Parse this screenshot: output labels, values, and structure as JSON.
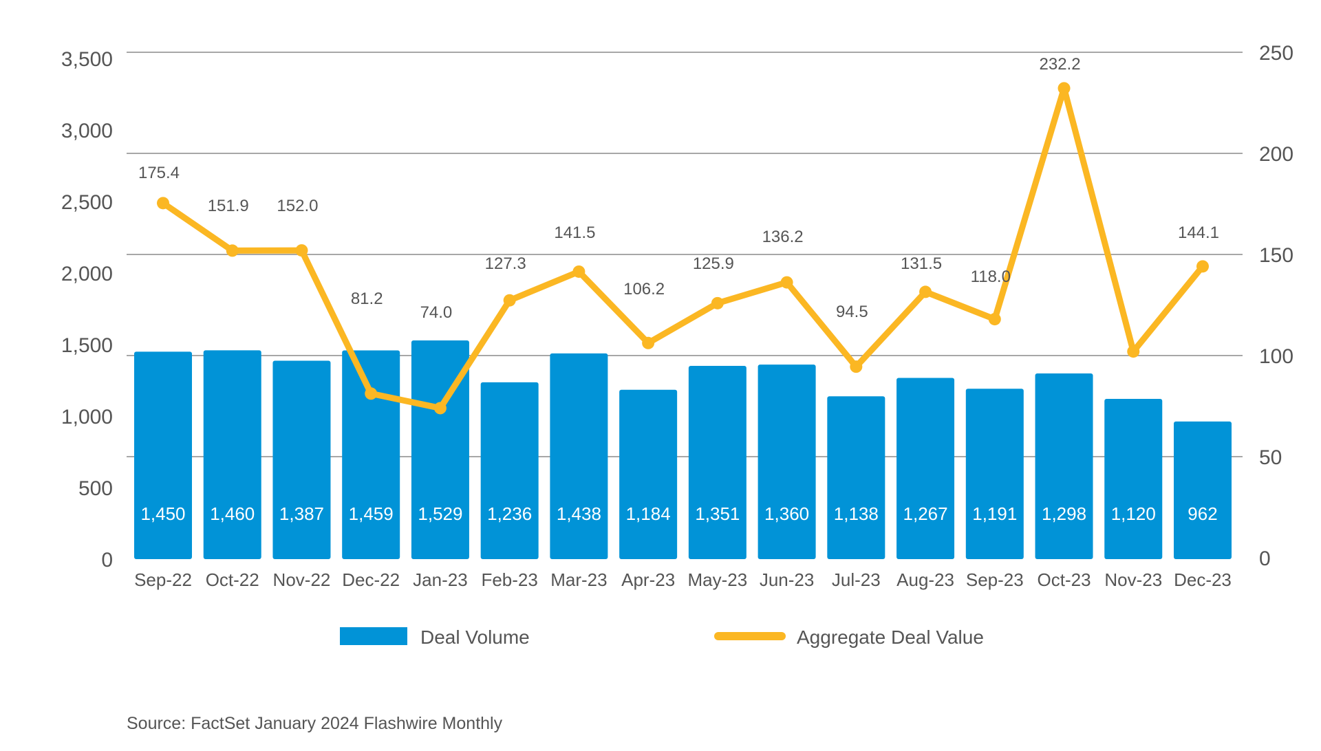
{
  "chart_data": {
    "type": "bar",
    "categories": [
      "Sep-22",
      "Oct-22",
      "Nov-22",
      "Dec-22",
      "Jan-23",
      "Feb-23",
      "Mar-23",
      "Apr-23",
      "May-23",
      "Jun-23",
      "Jul-23",
      "Aug-23",
      "Sep-23",
      "Oct-23",
      "Nov-23",
      "Dec-23"
    ],
    "series": [
      {
        "name": "Deal Volume",
        "type": "bar",
        "axis": "left",
        "values": [
          1450,
          1460,
          1387,
          1459,
          1529,
          1236,
          1438,
          1184,
          1351,
          1360,
          1138,
          1267,
          1191,
          1298,
          1120,
          962
        ],
        "labels": [
          "1,450",
          "1,460",
          "1,387",
          "1,459",
          "1,529",
          "1,236",
          "1,438",
          "1,184",
          "1,351",
          "1,360",
          "1,138",
          "1,267",
          "1,191",
          "1,298",
          "1,120",
          "962"
        ]
      },
      {
        "name": "Aggregate Deal Value",
        "type": "line",
        "axis": "right",
        "values": [
          175.4,
          151.9,
          152.0,
          81.2,
          74.0,
          127.3,
          141.5,
          106.2,
          125.9,
          136.2,
          94.5,
          131.5,
          118.0,
          232.2,
          102.0,
          144.1
        ],
        "labels": [
          "175.4",
          "151.9",
          "152.0",
          "81.2",
          "74.0",
          "127.3",
          "141.5",
          "106.2",
          "125.9",
          "136.2",
          "94.5",
          "131.5",
          "118.0",
          "232.2",
          "",
          "144.1"
        ]
      }
    ],
    "y_left_ticks": [
      "0",
      "500",
      "1,000",
      "1,500",
      "2,000",
      "2,500",
      "3,000",
      "3,500"
    ],
    "y_right_ticks": [
      "0",
      "50",
      "100",
      "150",
      "200",
      "250"
    ],
    "ylim_left": [
      0,
      3500
    ],
    "ylim_right": [
      0,
      250
    ],
    "grid": true,
    "legend_position": "bottom",
    "source": "Source: FactSet January 2024 Flashwire Monthly"
  },
  "colors": {
    "bar": "#0193d7",
    "line": "#fbb723",
    "grid": "#8a8a8a",
    "text": "#555555"
  }
}
